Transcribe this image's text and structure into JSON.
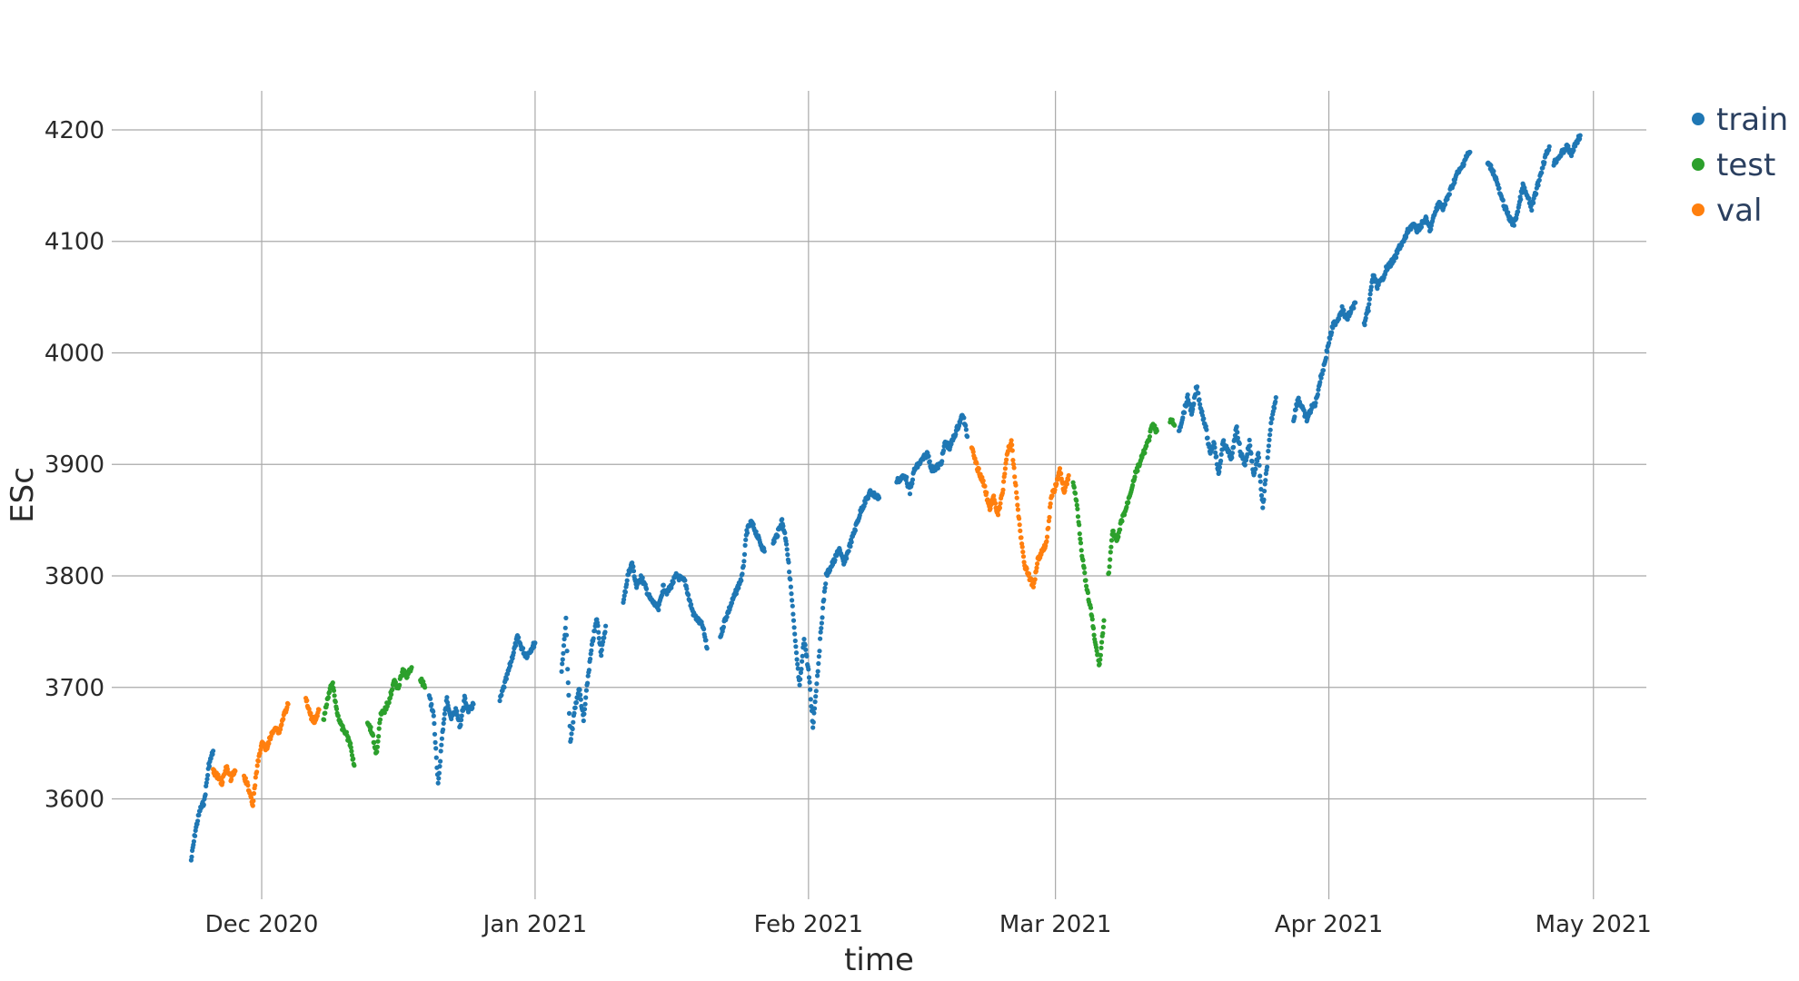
{
  "chart_data": {
    "type": "scatter",
    "title": "",
    "xlabel": "time",
    "ylabel": "ESc",
    "x_axis": {
      "type": "date",
      "range": [
        "2020-11-14",
        "2021-05-07"
      ],
      "ticks": [
        {
          "value": "2020-12-01",
          "label": "Dec 2020"
        },
        {
          "value": "2021-01-01",
          "label": "Jan 2021"
        },
        {
          "value": "2021-02-01",
          "label": "Feb 2021"
        },
        {
          "value": "2021-03-01",
          "label": "Mar 2021"
        },
        {
          "value": "2021-04-01",
          "label": "Apr 2021"
        },
        {
          "value": "2021-05-01",
          "label": "May 2021"
        }
      ]
    },
    "y_axis": {
      "range": [
        3510,
        4235
      ],
      "ticks": [
        3600,
        3700,
        3800,
        3900,
        4000,
        4100,
        4200
      ]
    },
    "grid": true,
    "legend": {
      "position": "top-right",
      "entries": [
        "train",
        "test",
        "val"
      ]
    },
    "series": [
      {
        "name": "train",
        "color": "#1f77b4",
        "segments": [
          {
            "x": [
              "2020-11-23",
              "2020-11-23 12:00",
              "2020-11-24",
              "2020-11-24 12:00",
              "2020-11-25",
              "2020-11-25 12:00"
            ],
            "y": [
              3545,
              3572,
              3590,
              3598,
              3630,
              3643
            ]
          },
          {
            "x": [
              "2020-12-20",
              "2020-12-20 12:00",
              "2020-12-21",
              "2020-12-21 12:00",
              "2020-12-22",
              "2020-12-22 12:00",
              "2020-12-23",
              "2020-12-23 12:00",
              "2020-12-24",
              "2020-12-24 12:00",
              "2020-12-25"
            ],
            "y": [
              3692,
              3675,
              3612,
              3660,
              3690,
              3672,
              3680,
              3665,
              3690,
              3678,
              3685
            ]
          },
          {
            "x": [
              "2020-12-28",
              "2020-12-29",
              "2020-12-29 12:00",
              "2020-12-30",
              "2020-12-30 12:00",
              "2020-12-31",
              "2021-01-01"
            ],
            "y": [
              3688,
              3715,
              3730,
              3745,
              3735,
              3728,
              3740
            ]
          },
          {
            "x": [
              "2021-01-04",
              "2021-01-04 12:00",
              "2021-01-05",
              "2021-01-05 12:00",
              "2021-01-06",
              "2021-01-06 12:00",
              "2021-01-07",
              "2021-01-07 12:00",
              "2021-01-08",
              "2021-01-08 12:00",
              "2021-01-09"
            ],
            "y": [
              3715,
              3760,
              3650,
              3680,
              3700,
              3670,
              3710,
              3740,
              3762,
              3730,
              3755
            ]
          },
          {
            "x": [
              "2021-01-11",
              "2021-01-11 12:00",
              "2021-01-12",
              "2021-01-12 12:00",
              "2021-01-13",
              "2021-01-14",
              "2021-01-15",
              "2021-01-15 12:00",
              "2021-01-16",
              "2021-01-17",
              "2021-01-18",
              "2021-01-18 12:00",
              "2021-01-19",
              "2021-01-20",
              "2021-01-20 12:00"
            ],
            "y": [
              3775,
              3800,
              3812,
              3790,
              3800,
              3780,
              3770,
              3790,
              3785,
              3800,
              3795,
              3778,
              3765,
              3755,
              3735
            ]
          },
          {
            "x": [
              "2021-01-22",
              "2021-01-22 12:00",
              "2021-01-23",
              "2021-01-24",
              "2021-01-24 12:00",
              "2021-01-25",
              "2021-01-25 12:00",
              "2021-01-26",
              "2021-01-26 12:00",
              "2021-01-27"
            ],
            "y": [
              3745,
              3760,
              3770,
              3790,
              3800,
              3840,
              3848,
              3840,
              3830,
              3822
            ]
          },
          {
            "x": [
              "2021-01-28",
              "2021-01-28 12:00",
              "2021-01-29",
              "2021-01-29 12:00",
              "2021-01-30",
              "2021-01-30 12:00",
              "2021-01-31",
              "2021-01-31 12:00",
              "2021-02-01",
              "2021-02-01 12:00",
              "2021-02-02",
              "2021-02-02 12:00",
              "2021-02-03",
              "2021-02-04",
              "2021-02-04 12:00",
              "2021-02-05",
              "2021-02-06",
              "2021-02-07",
              "2021-02-08",
              "2021-02-09"
            ],
            "y": [
              3830,
              3838,
              3850,
              3830,
              3790,
              3740,
              3700,
              3745,
              3715,
              3665,
              3710,
              3760,
              3800,
              3815,
              3825,
              3810,
              3835,
              3860,
              3875,
              3870
            ]
          },
          {
            "x": [
              "2021-02-11",
              "2021-02-12",
              "2021-02-12 12:00",
              "2021-02-13",
              "2021-02-14",
              "2021-02-14 12:00",
              "2021-02-15",
              "2021-02-16",
              "2021-02-16 12:00",
              "2021-02-17",
              "2021-02-18",
              "2021-02-18 12:00",
              "2021-02-19"
            ],
            "y": [
              3885,
              3890,
              3875,
              3895,
              3905,
              3910,
              3895,
              3900,
              3920,
              3915,
              3935,
              3945,
              3925
            ]
          },
          {
            "x": [
              "2021-03-15",
              "2021-03-15 12:00",
              "2021-03-16",
              "2021-03-16 12:00",
              "2021-03-17",
              "2021-03-17 12:00",
              "2021-03-18",
              "2021-03-18 12:00",
              "2021-03-19",
              "2021-03-19 12:00",
              "2021-03-20",
              "2021-03-21",
              "2021-03-21 12:00",
              "2021-03-22",
              "2021-03-22 12:00",
              "2021-03-23",
              "2021-03-23 12:00",
              "2021-03-24",
              "2021-03-24 12:00",
              "2021-03-25",
              "2021-03-25 12:00",
              "2021-03-26"
            ],
            "y": [
              3930,
              3945,
              3960,
              3945,
              3970,
              3950,
              3935,
              3910,
              3920,
              3890,
              3920,
              3905,
              3935,
              3910,
              3900,
              3920,
              3890,
              3910,
              3860,
              3900,
              3940,
              3960
            ]
          },
          {
            "x": [
              "2021-03-28",
              "2021-03-28 12:00",
              "2021-03-29",
              "2021-03-29 12:00",
              "2021-03-30",
              "2021-03-30 12:00",
              "2021-03-31",
              "2021-03-31 12:00",
              "2021-04-01",
              "2021-04-01 12:00",
              "2021-04-02",
              "2021-04-02 12:00",
              "2021-04-03",
              "2021-04-04"
            ],
            "y": [
              3940,
              3960,
              3950,
              3940,
              3950,
              3955,
              3975,
              3990,
              4010,
              4025,
              4030,
              4040,
              4030,
              4045
            ]
          },
          {
            "x": [
              "2021-04-05",
              "2021-04-05 12:00",
              "2021-04-06",
              "2021-04-06 12:00",
              "2021-04-07",
              "2021-04-07 12:00",
              "2021-04-08",
              "2021-04-08 12:00",
              "2021-04-09",
              "2021-04-09 12:00",
              "2021-04-10",
              "2021-04-10 12:00",
              "2021-04-11",
              "2021-04-12",
              "2021-04-12 12:00",
              "2021-04-13",
              "2021-04-13 12:00",
              "2021-04-14",
              "2021-04-14 12:00",
              "2021-04-15",
              "2021-04-15 12:00",
              "2021-04-16",
              "2021-04-16 12:00",
              "2021-04-17"
            ],
            "y": [
              4025,
              4040,
              4070,
              4060,
              4065,
              4075,
              4080,
              4085,
              4095,
              4100,
              4110,
              4115,
              4110,
              4120,
              4110,
              4125,
              4135,
              4130,
              4140,
              4150,
              4160,
              4165,
              4175,
              4180
            ]
          },
          {
            "x": [
              "2021-04-19",
              "2021-04-19 12:00",
              "2021-04-20",
              "2021-04-20 12:00",
              "2021-04-21",
              "2021-04-21 12:00",
              "2021-04-22",
              "2021-04-22 12:00",
              "2021-04-23",
              "2021-04-23 12:00",
              "2021-04-24",
              "2021-04-25",
              "2021-04-25 12:00",
              "2021-04-26"
            ],
            "y": [
              4170,
              4165,
              4155,
              4140,
              4130,
              4120,
              4115,
              4130,
              4150,
              4140,
              4130,
              4160,
              4175,
              4185
            ]
          },
          {
            "x": [
              "2021-04-26 12:00",
              "2021-04-27",
              "2021-04-27 12:00",
              "2021-04-28",
              "2021-04-28 12:00",
              "2021-04-29",
              "2021-04-29 12:00"
            ],
            "y": [
              4170,
              4175,
              4180,
              4185,
              4178,
              4188,
              4195
            ]
          }
        ]
      },
      {
        "name": "test",
        "color": "#2ca02c",
        "segments": [
          {
            "x": [
              "2020-12-08",
              "2020-12-08 12:00",
              "2020-12-09",
              "2020-12-09 12:00",
              "2020-12-10",
              "2020-12-10 12:00",
              "2020-12-11",
              "2020-12-11 12:00"
            ],
            "y": [
              3670,
              3690,
              3705,
              3680,
              3665,
              3660,
              3650,
              3630
            ]
          },
          {
            "x": [
              "2020-12-13",
              "2020-12-13 12:00",
              "2020-12-14",
              "2020-12-14 12:00",
              "2020-12-15",
              "2020-12-15 12:00",
              "2020-12-16",
              "2020-12-16 12:00",
              "2020-12-17",
              "2020-12-17 12:00",
              "2020-12-18"
            ],
            "y": [
              3670,
              3660,
              3640,
              3675,
              3680,
              3690,
              3705,
              3700,
              3715,
              3710,
              3718
            ]
          },
          {
            "x": [
              "2020-12-19",
              "2020-12-19 12:00"
            ],
            "y": [
              3708,
              3700
            ]
          },
          {
            "x": [
              "2021-03-03",
              "2021-03-03 12:00",
              "2021-03-04",
              "2021-03-04 12:00",
              "2021-03-05",
              "2021-03-05 12:00",
              "2021-03-06",
              "2021-03-06 12:00"
            ],
            "y": [
              3885,
              3860,
              3820,
              3790,
              3770,
              3740,
              3720,
              3760
            ]
          },
          {
            "x": [
              "2021-03-07",
              "2021-03-07 12:00",
              "2021-03-08",
              "2021-03-08 12:00",
              "2021-03-09",
              "2021-03-09 12:00",
              "2021-03-10",
              "2021-03-10 12:00",
              "2021-03-11",
              "2021-03-11 12:00",
              "2021-03-12",
              "2021-03-12 12:00"
            ],
            "y": [
              3800,
              3840,
              3830,
              3850,
              3860,
              3875,
              3890,
              3900,
              3910,
              3920,
              3935,
              3930
            ]
          },
          {
            "x": [
              "2021-03-14",
              "2021-03-14 12:00"
            ],
            "y": [
              3940,
              3935
            ]
          }
        ]
      },
      {
        "name": "val",
        "color": "#ff7f0e",
        "segments": [
          {
            "x": [
              "2020-11-25 12:00",
              "2020-11-26",
              "2020-11-26 12:00",
              "2020-11-27",
              "2020-11-27 12:00",
              "2020-11-28"
            ],
            "y": [
              3625,
              3620,
              3615,
              3628,
              3618,
              3625
            ]
          },
          {
            "x": [
              "2020-11-29",
              "2020-11-29 12:00",
              "2020-11-30",
              "2020-11-30 12:00",
              "2020-12-01",
              "2020-12-01 12:00",
              "2020-12-02",
              "2020-12-02 12:00",
              "2020-12-03",
              "2020-12-03 12:00",
              "2020-12-04"
            ],
            "y": [
              3620,
              3610,
              3595,
              3630,
              3650,
              3645,
              3655,
              3665,
              3660,
              3675,
              3685
            ]
          },
          {
            "x": [
              "2020-12-06",
              "2020-12-06 12:00",
              "2020-12-07",
              "2020-12-07 12:00"
            ],
            "y": [
              3690,
              3675,
              3670,
              3680
            ]
          },
          {
            "x": [
              "2021-02-19 12:00",
              "2021-02-20",
              "2021-02-20 12:00",
              "2021-02-21",
              "2021-02-21 12:00",
              "2021-02-22",
              "2021-02-22 12:00",
              "2021-02-23",
              "2021-02-23 12:00",
              "2021-02-24",
              "2021-02-24 12:00",
              "2021-02-25",
              "2021-02-25 12:00",
              "2021-02-26",
              "2021-02-26 12:00",
              "2021-02-27",
              "2021-02-28",
              "2021-02-28 12:00",
              "2021-03-01",
              "2021-03-01 12:00",
              "2021-03-02",
              "2021-03-02 12:00"
            ],
            "y": [
              3915,
              3900,
              3890,
              3880,
              3860,
              3870,
              3855,
              3875,
              3910,
              3920,
              3880,
              3840,
              3810,
              3800,
              3790,
              3815,
              3830,
              3870,
              3880,
              3895,
              3875,
              3890
            ]
          }
        ]
      }
    ]
  }
}
